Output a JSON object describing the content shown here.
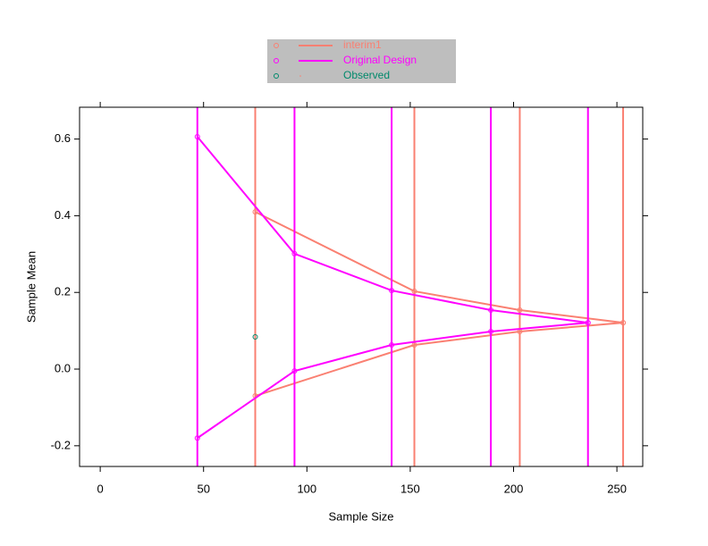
{
  "chart_data": {
    "type": "boundary",
    "x_label": "Sample Size",
    "y_label": "Sample Mean",
    "xlim": [
      -10,
      262.5
    ],
    "ylim": [
      -0.254,
      0.683
    ],
    "xticks": [
      0,
      50,
      100,
      150,
      200,
      250
    ],
    "yticks": [
      -0.2,
      {
        "value": 0,
        "label": "0.0"
      },
      0.2,
      0.4,
      0.6
    ],
    "series": [
      {
        "name": "interim1",
        "color": "#fa8072",
        "x": [
          75,
          152,
          203,
          253
        ],
        "upper": [
          0.41,
          0.203,
          0.154,
          0.121
        ],
        "lower": [
          -0.07,
          0.063,
          0.098,
          0.121
        ]
      },
      {
        "name": "Original Design",
        "color": "#ff00ff",
        "x": [
          47,
          94,
          141,
          189,
          236
        ],
        "upper": [
          0.606,
          0.301,
          0.205,
          0.154,
          0.121
        ],
        "lower": [
          -0.18,
          -0.005,
          0.063,
          0.098,
          0.121
        ]
      }
    ],
    "observed": {
      "name": "Observed",
      "color": "#00896b",
      "x": [
        75
      ],
      "values": [
        0.084
      ]
    }
  }
}
